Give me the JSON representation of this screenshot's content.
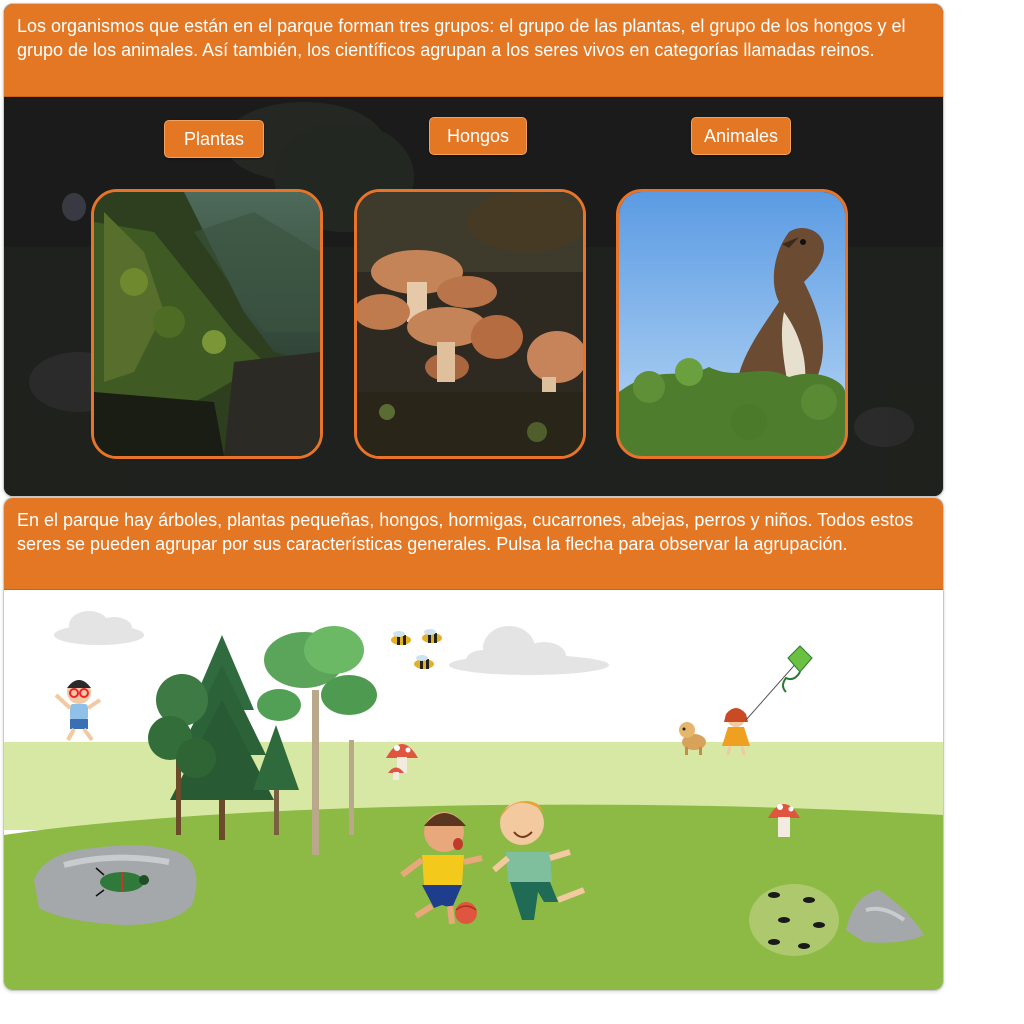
{
  "panel_top": {
    "intro_text": "Los organismos que están en el parque forman tres grupos: el grupo de las plantas, el grupo de los hongos y el grupo de los animales. Así también, los científicos agrupan a los seres vivos en categorías llamadas reinos.",
    "groups": [
      {
        "label": "Plantas",
        "image_icon": "cliff-forest-photo"
      },
      {
        "label": "Hongos",
        "image_icon": "mushroom-cluster-photo"
      },
      {
        "label": "Animales",
        "image_icon": "hawk-photo"
      }
    ]
  },
  "panel_bottom": {
    "intro_text": "En el parque hay árboles, plantas pequeñas, hongos, hormigas, cucarrones, abejas, perros y niños. Todos estos seres se pueden agrupar por sus características generales. Pulsa la flecha para observar la agrupación.",
    "scene_items": [
      "cloud-icon",
      "tree-icon",
      "bee-icon",
      "mushroom-icon",
      "child-icon",
      "dog-icon",
      "kite-icon",
      "beetle-icon",
      "ant-icon",
      "rock-icon",
      "ball-icon"
    ]
  },
  "colors": {
    "accent_orange": "#e37724",
    "card_border": "#e8742a",
    "grass_light": "#d6e8a4",
    "grass_dark": "#8cba45"
  }
}
